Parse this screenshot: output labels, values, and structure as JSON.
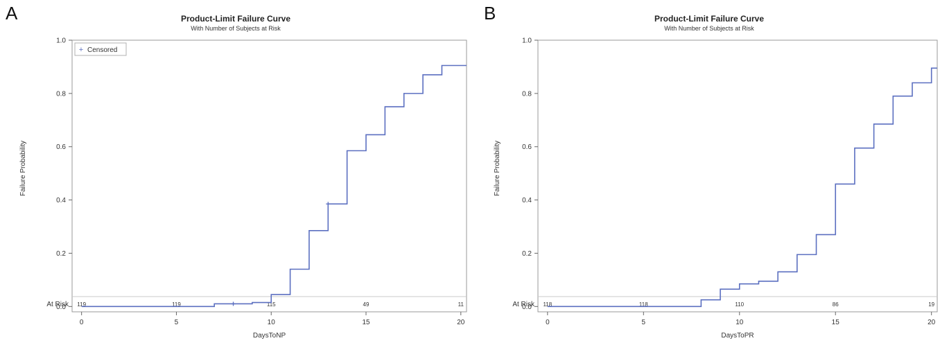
{
  "chart_data": [
    {
      "panel_letter": "A",
      "type": "line",
      "title": "Product-Limit Failure Curve",
      "subtitle": "With Number of Subjects at Risk",
      "xlabel": "DaysToNP",
      "ylabel": "Failure Probability",
      "xlim": [
        -0.5,
        20.3
      ],
      "ylim": [
        -0.02,
        1.0
      ],
      "xticks": [
        0,
        5,
        10,
        15,
        20
      ],
      "yticks": [
        "0.0",
        "0.2",
        "0.4",
        "0.6",
        "0.8",
        "1.0"
      ],
      "grid": false,
      "legend": {
        "position": "top-left",
        "label": "Censored",
        "symbol": "+"
      },
      "line_color": "#5b6fc0",
      "series": [
        {
          "step": true,
          "x": [
            0,
            7,
            8,
            9,
            10,
            11,
            12,
            13,
            14,
            15,
            16,
            17,
            18,
            19,
            20.3
          ],
          "y": [
            0.0,
            0.01,
            0.01,
            0.015,
            0.045,
            0.14,
            0.285,
            0.385,
            0.585,
            0.645,
            0.75,
            0.8,
            0.87,
            0.905,
            0.905
          ]
        }
      ],
      "censored": [
        {
          "x": 8,
          "y": 0.01
        },
        {
          "x": 13,
          "y": 0.385
        }
      ],
      "at_risk": {
        "label": "At Risk",
        "x": [
          0,
          5,
          10,
          15,
          20
        ],
        "values": [
          "119",
          "119",
          "115",
          "49",
          "11"
        ]
      }
    },
    {
      "panel_letter": "B",
      "type": "line",
      "title": "Product-Limit Failure Curve",
      "subtitle": "With Number of Subjects at Risk",
      "xlabel": "DaysToPR",
      "ylabel": "Failure Probability",
      "xlim": [
        -0.5,
        20.3
      ],
      "ylim": [
        -0.02,
        1.0
      ],
      "xticks": [
        0,
        5,
        10,
        15,
        20
      ],
      "yticks": [
        "0.0",
        "0.2",
        "0.4",
        "0.6",
        "0.8",
        "1.0"
      ],
      "grid": false,
      "line_color": "#5b6fc0",
      "series": [
        {
          "step": true,
          "x": [
            0,
            8,
            9,
            10,
            11,
            12,
            13,
            14,
            15,
            16,
            17,
            18,
            19,
            20,
            20.3
          ],
          "y": [
            0.0,
            0.025,
            0.065,
            0.085,
            0.095,
            0.13,
            0.195,
            0.27,
            0.46,
            0.595,
            0.685,
            0.79,
            0.84,
            0.895,
            0.895
          ]
        }
      ],
      "censored": [],
      "at_risk": {
        "label": "At Risk",
        "x": [
          0,
          5,
          10,
          15,
          20
        ],
        "values": [
          "118",
          "118",
          "110",
          "86",
          "19"
        ]
      }
    }
  ]
}
